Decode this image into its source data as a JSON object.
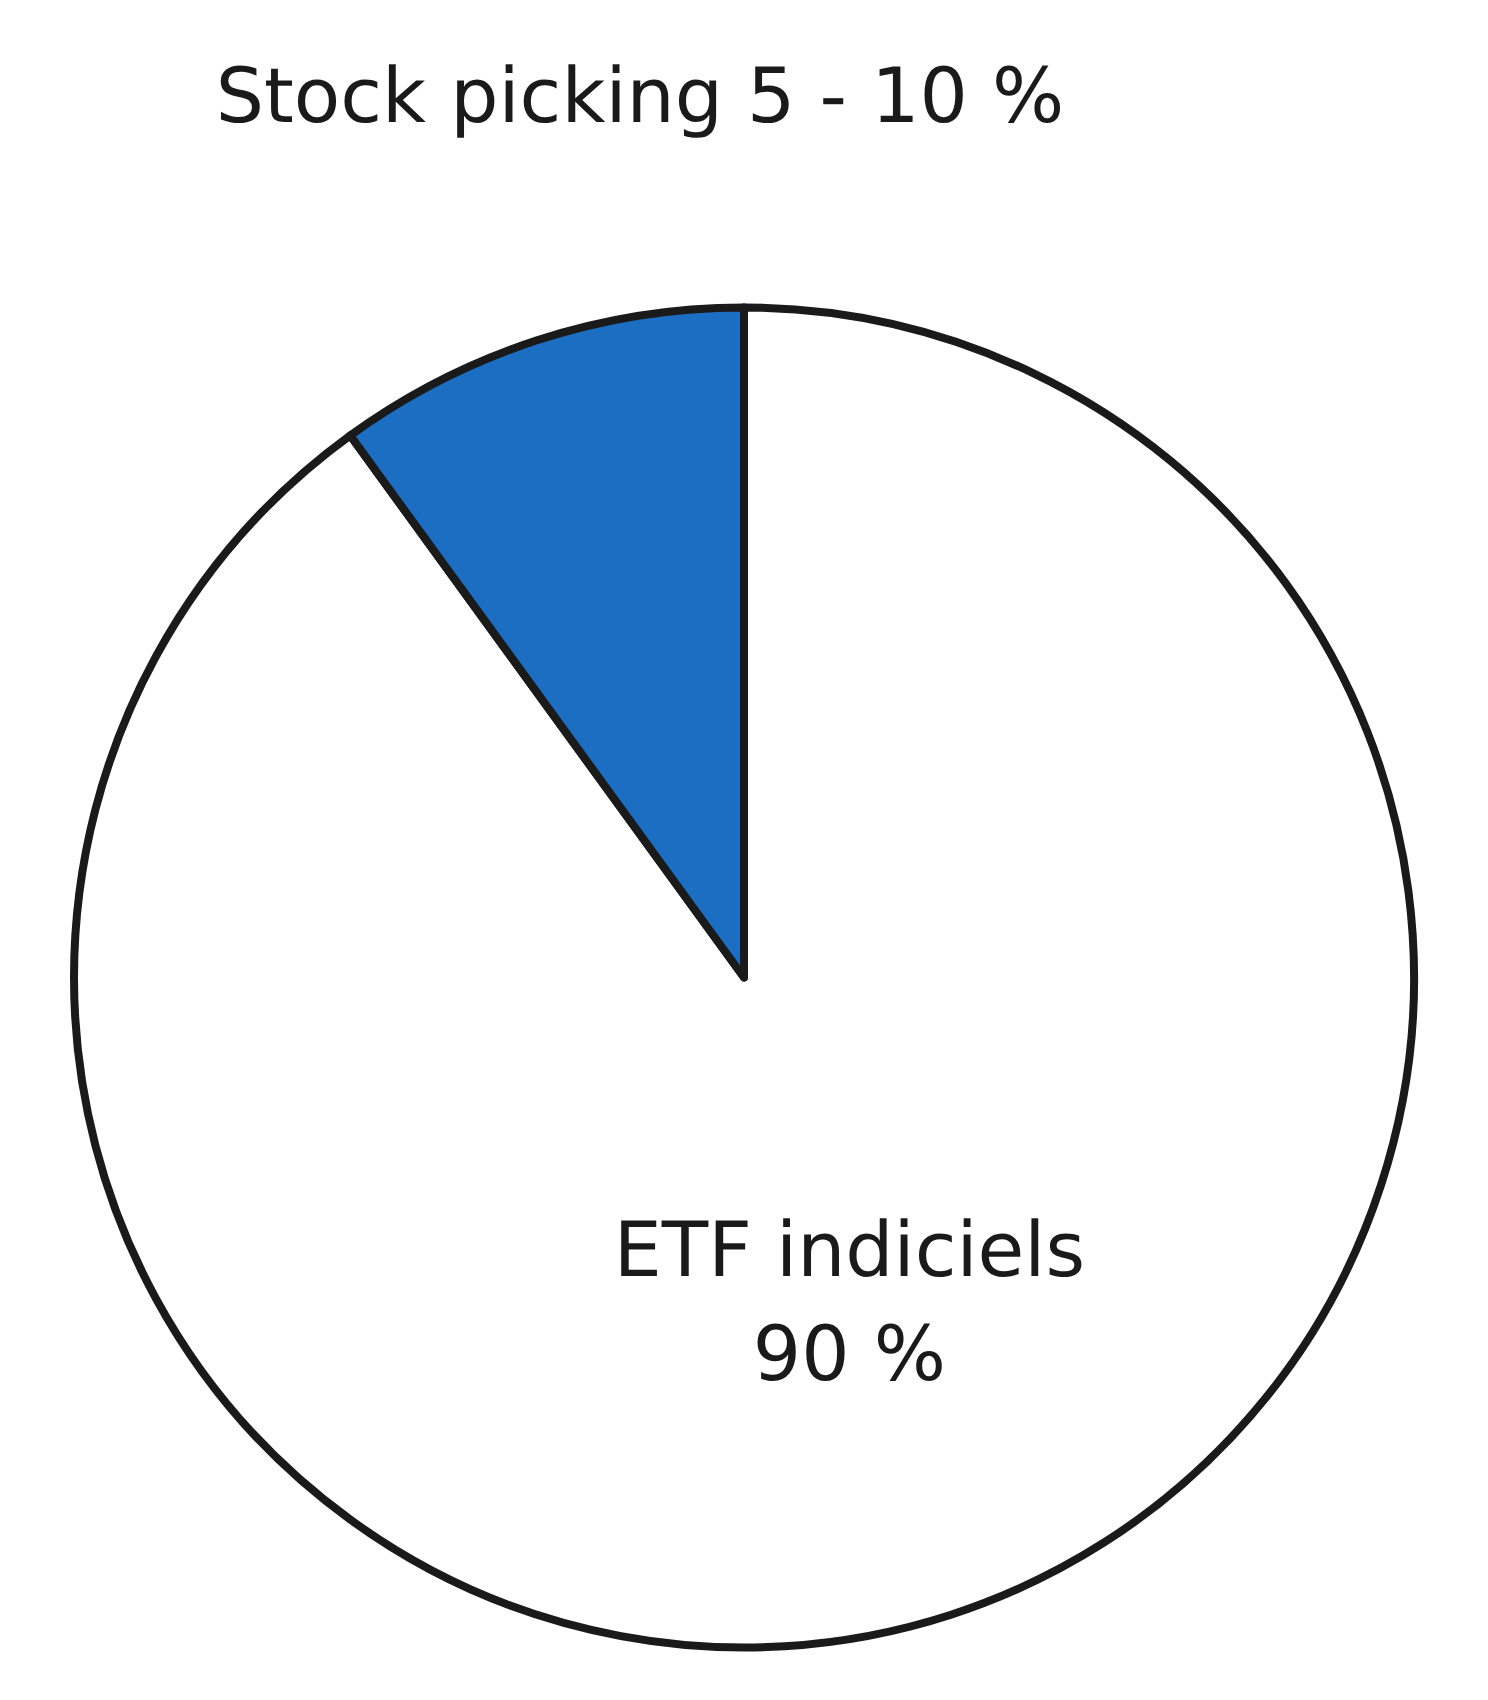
{
  "chart_data": {
    "type": "pie",
    "categories": [
      "ETF indiciels",
      "Stock picking 5 - 10 %"
    ],
    "values": [
      90,
      10
    ],
    "colors": [
      "#ffffff",
      "#1b6ec2"
    ],
    "value_labels": [
      "90 %",
      null
    ]
  }
}
